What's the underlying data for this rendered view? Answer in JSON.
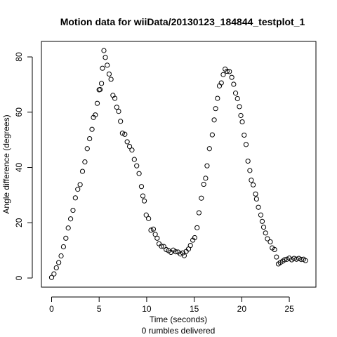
{
  "chart_data": {
    "type": "scatter",
    "title": "Motion data for wiiData/20130123_184844_testplot_1",
    "xlabel": "Time (seconds)",
    "subtitle": "0 rumbles delivered",
    "ylabel": "Angle difference (degrees)",
    "xlim": [
      -1.07,
      27.8
    ],
    "ylim": [
      -3.3,
      85.6
    ],
    "x_ticks": [
      0,
      5,
      10,
      15,
      20,
      25
    ],
    "y_ticks": [
      0,
      20,
      40,
      60,
      80
    ],
    "marker": "open-circle",
    "color": "#000000",
    "points": [
      [
        0.0,
        0.2
      ],
      [
        0.25,
        1.5
      ],
      [
        0.5,
        3.7
      ],
      [
        0.75,
        5.6
      ],
      [
        1.0,
        8.0
      ],
      [
        1.25,
        11.3
      ],
      [
        1.5,
        14.4
      ],
      [
        1.75,
        18.1
      ],
      [
        2.0,
        21.4
      ],
      [
        2.25,
        24.5
      ],
      [
        2.5,
        29.0
      ],
      [
        2.75,
        32.1
      ],
      [
        3.0,
        33.8
      ],
      [
        3.25,
        38.6
      ],
      [
        3.5,
        42.0
      ],
      [
        3.75,
        46.8
      ],
      [
        4.0,
        50.4
      ],
      [
        4.25,
        53.8
      ],
      [
        4.4,
        58.1
      ],
      [
        4.6,
        59.0
      ],
      [
        4.8,
        63.2
      ],
      [
        5.0,
        68.1
      ],
      [
        5.1,
        68.2
      ],
      [
        5.25,
        70.4
      ],
      [
        5.35,
        75.9
      ],
      [
        5.5,
        82.3
      ],
      [
        5.65,
        79.8
      ],
      [
        5.85,
        77.0
      ],
      [
        6.05,
        73.8
      ],
      [
        6.25,
        71.9
      ],
      [
        6.45,
        66.1
      ],
      [
        6.65,
        65.0
      ],
      [
        6.85,
        61.8
      ],
      [
        7.05,
        60.3
      ],
      [
        7.25,
        56.7
      ],
      [
        7.45,
        52.4
      ],
      [
        7.7,
        52.0
      ],
      [
        7.95,
        49.3
      ],
      [
        8.2,
        47.6
      ],
      [
        8.45,
        46.3
      ],
      [
        8.7,
        42.9
      ],
      [
        8.95,
        40.6
      ],
      [
        9.2,
        37.8
      ],
      [
        9.45,
        33.1
      ],
      [
        9.6,
        29.7
      ],
      [
        9.75,
        27.9
      ],
      [
        9.95,
        22.8
      ],
      [
        10.2,
        21.5
      ],
      [
        10.45,
        17.3
      ],
      [
        10.7,
        17.7
      ],
      [
        10.9,
        15.8
      ],
      [
        11.1,
        14.4
      ],
      [
        11.3,
        12.4
      ],
      [
        11.55,
        11.5
      ],
      [
        11.8,
        11.4
      ],
      [
        12.05,
        10.3
      ],
      [
        12.3,
        9.9
      ],
      [
        12.55,
        9.3
      ],
      [
        12.8,
        10.1
      ],
      [
        13.05,
        9.5
      ],
      [
        13.3,
        9.4
      ],
      [
        13.55,
        8.7
      ],
      [
        13.8,
        9.1
      ],
      [
        13.95,
        8.1
      ],
      [
        14.15,
        9.6
      ],
      [
        14.4,
        10.5
      ],
      [
        14.6,
        11.8
      ],
      [
        14.85,
        13.7
      ],
      [
        15.05,
        14.6
      ],
      [
        15.3,
        18.2
      ],
      [
        15.5,
        23.6
      ],
      [
        15.75,
        28.9
      ],
      [
        16.0,
        33.9
      ],
      [
        16.2,
        36.1
      ],
      [
        16.35,
        40.6
      ],
      [
        16.6,
        46.8
      ],
      [
        16.9,
        51.8
      ],
      [
        17.1,
        57.2
      ],
      [
        17.25,
        61.3
      ],
      [
        17.45,
        65.0
      ],
      [
        17.65,
        69.5
      ],
      [
        17.85,
        70.6
      ],
      [
        18.05,
        73.6
      ],
      [
        18.25,
        75.6
      ],
      [
        18.45,
        74.8
      ],
      [
        18.7,
        74.7
      ],
      [
        18.95,
        72.6
      ],
      [
        19.15,
        70.1
      ],
      [
        19.35,
        66.9
      ],
      [
        19.55,
        64.9
      ],
      [
        19.75,
        62.0
      ],
      [
        19.9,
        58.8
      ],
      [
        20.05,
        56.5
      ],
      [
        20.25,
        51.7
      ],
      [
        20.45,
        48.3
      ],
      [
        20.65,
        42.3
      ],
      [
        20.85,
        38.9
      ],
      [
        21.0,
        35.4
      ],
      [
        21.2,
        33.7
      ],
      [
        21.45,
        30.4
      ],
      [
        21.55,
        28.6
      ],
      [
        21.75,
        25.6
      ],
      [
        22.0,
        22.8
      ],
      [
        22.15,
        20.5
      ],
      [
        22.3,
        18.4
      ],
      [
        22.5,
        16.3
      ],
      [
        22.7,
        14.2
      ],
      [
        23.0,
        13.1
      ],
      [
        23.2,
        10.9
      ],
      [
        23.45,
        10.3
      ],
      [
        23.65,
        7.6
      ],
      [
        23.85,
        5.1
      ],
      [
        24.05,
        5.6
      ],
      [
        24.3,
        6.1
      ],
      [
        24.5,
        6.6
      ],
      [
        24.75,
        6.8
      ],
      [
        25.0,
        7.2
      ],
      [
        25.25,
        6.6
      ],
      [
        25.5,
        7.1
      ],
      [
        25.75,
        6.8
      ],
      [
        26.0,
        7.1
      ],
      [
        26.25,
        6.7
      ],
      [
        26.5,
        6.8
      ],
      [
        26.7,
        6.3
      ]
    ]
  }
}
